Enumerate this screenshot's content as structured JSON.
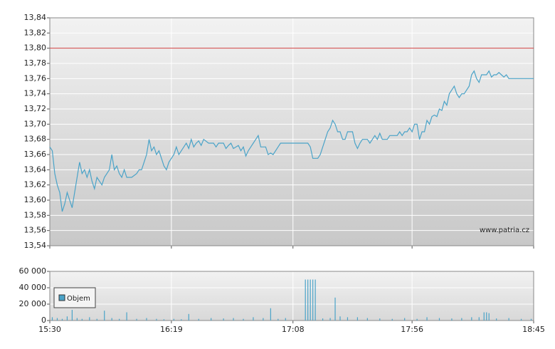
{
  "chart_data": [
    {
      "type": "line",
      "x": [
        "15:30",
        "15:31",
        "15:32",
        "15:33",
        "15:34",
        "15:35",
        "15:36",
        "15:37",
        "15:38",
        "15:39",
        "15:40",
        "15:41",
        "15:42",
        "15:43",
        "15:44",
        "15:45",
        "15:46",
        "15:47",
        "15:48",
        "15:49",
        "15:50",
        "15:51",
        "15:52",
        "15:53",
        "15:54",
        "15:55",
        "15:56",
        "15:57",
        "15:58",
        "15:59",
        "16:00",
        "16:01",
        "16:03",
        "16:05",
        "16:06",
        "16:07",
        "16:08",
        "16:09",
        "16:10",
        "16:11",
        "16:12",
        "16:13",
        "16:14",
        "16:15",
        "16:16",
        "16:17",
        "16:18",
        "16:19",
        "16:20",
        "16:21",
        "16:22",
        "16:23",
        "16:24",
        "16:25",
        "16:26",
        "16:27",
        "16:28",
        "16:29",
        "16:30",
        "16:31",
        "16:32",
        "16:34",
        "16:36",
        "16:37",
        "16:38",
        "16:40",
        "16:41",
        "16:42",
        "16:43",
        "16:44",
        "16:45",
        "16:46",
        "16:47",
        "16:48",
        "16:49",
        "16:50",
        "16:51",
        "16:52",
        "16:53",
        "16:54",
        "16:55",
        "16:57",
        "16:58",
        "16:59",
        "17:00",
        "17:01",
        "17:02",
        "17:03",
        "17:05",
        "17:10",
        "17:14",
        "17:15",
        "17:16",
        "17:18",
        "17:19",
        "17:20",
        "17:21",
        "17:22",
        "17:23",
        "17:24",
        "17:25",
        "17:26",
        "17:27",
        "17:28",
        "17:29",
        "17:30",
        "17:32",
        "17:33",
        "17:34",
        "17:35",
        "17:36",
        "17:38",
        "17:39",
        "17:40",
        "17:41",
        "17:42",
        "17:43",
        "17:44",
        "17:46",
        "17:47",
        "17:50",
        "17:51",
        "17:52",
        "17:53",
        "17:54",
        "17:55",
        "17:56",
        "17:57",
        "17:58",
        "17:59",
        "18:00",
        "18:01",
        "18:02",
        "18:03",
        "18:04",
        "18:05",
        "18:06",
        "18:07",
        "18:08",
        "18:09",
        "18:10",
        "18:11",
        "18:12",
        "18:13",
        "18:14",
        "18:15",
        "18:16",
        "18:17",
        "18:18",
        "18:19",
        "18:20",
        "18:21",
        "18:22",
        "18:23",
        "18:24",
        "18:25",
        "18:26",
        "18:27",
        "18:28",
        "18:29",
        "18:30",
        "18:31",
        "18:32",
        "18:33",
        "18:34",
        "18:35",
        "18:40",
        "18:45"
      ],
      "values": [
        13.67,
        13.665,
        13.635,
        13.62,
        13.61,
        13.585,
        13.595,
        13.61,
        13.6,
        13.59,
        13.61,
        13.63,
        13.65,
        13.635,
        13.64,
        13.63,
        13.64,
        13.625,
        13.615,
        13.63,
        13.625,
        13.62,
        13.63,
        13.635,
        13.64,
        13.66,
        13.64,
        13.645,
        13.635,
        13.63,
        13.64,
        13.63,
        13.63,
        13.635,
        13.64,
        13.64,
        13.65,
        13.66,
        13.68,
        13.665,
        13.67,
        13.66,
        13.665,
        13.655,
        13.645,
        13.64,
        13.65,
        13.655,
        13.66,
        13.67,
        13.66,
        13.665,
        13.67,
        13.675,
        13.668,
        13.68,
        13.67,
        13.675,
        13.678,
        13.672,
        13.68,
        13.675,
        13.675,
        13.67,
        13.675,
        13.675,
        13.668,
        13.672,
        13.675,
        13.668,
        13.67,
        13.672,
        13.665,
        13.67,
        13.658,
        13.665,
        13.67,
        13.675,
        13.68,
        13.685,
        13.67,
        13.67,
        13.66,
        13.662,
        13.66,
        13.665,
        13.67,
        13.675,
        13.675,
        13.675,
        13.675,
        13.67,
        13.655,
        13.655,
        13.66,
        13.67,
        13.68,
        13.69,
        13.695,
        13.705,
        13.7,
        13.69,
        13.69,
        13.68,
        13.68,
        13.69,
        13.69,
        13.675,
        13.668,
        13.675,
        13.68,
        13.68,
        13.675,
        13.68,
        13.685,
        13.68,
        13.688,
        13.68,
        13.68,
        13.685,
        13.685,
        13.69,
        13.685,
        13.69,
        13.69,
        13.695,
        13.69,
        13.7,
        13.7,
        13.68,
        13.69,
        13.69,
        13.705,
        13.7,
        13.71,
        13.712,
        13.71,
        13.72,
        13.718,
        13.73,
        13.725,
        13.74,
        13.745,
        13.75,
        13.74,
        13.735,
        13.74,
        13.74,
        13.745,
        13.75,
        13.765,
        13.77,
        13.76,
        13.755,
        13.765,
        13.765,
        13.765,
        13.77,
        13.762,
        13.765,
        13.765,
        13.768,
        13.765,
        13.762,
        13.765,
        13.76,
        13.76,
        13.76
      ],
      "color": "#4aa3c8",
      "xlim": [
        "15:30",
        "18:45"
      ],
      "xticks": [
        "15:30",
        "16:19",
        "17:08",
        "17:56",
        "18:45"
      ],
      "ylim": [
        13.54,
        13.84
      ],
      "yticks": [
        {
          "value": 13.54,
          "label": "13,54"
        },
        {
          "value": 13.56,
          "label": "13,56"
        },
        {
          "value": 13.58,
          "label": "13,58"
        },
        {
          "value": 13.6,
          "label": "13,60"
        },
        {
          "value": 13.62,
          "label": "13,62"
        },
        {
          "value": 13.64,
          "label": "13,64"
        },
        {
          "value": 13.66,
          "label": "13,66"
        },
        {
          "value": 13.68,
          "label": "13,68"
        },
        {
          "value": 13.7,
          "label": "13,70"
        },
        {
          "value": 13.72,
          "label": "13,72"
        },
        {
          "value": 13.74,
          "label": "13,74"
        },
        {
          "value": 13.76,
          "label": "13,76"
        },
        {
          "value": 13.78,
          "label": "13,78"
        },
        {
          "value": 13.8,
          "label": "13,80"
        },
        {
          "value": 13.82,
          "label": "13,82"
        },
        {
          "value": 13.84,
          "label": "13,84"
        }
      ],
      "reference_line": 13.8,
      "reference_color": "#d04040",
      "annotation": "www.patria.cz",
      "grid": true
    },
    {
      "type": "bar",
      "x": [
        "15:31",
        "15:33",
        "15:35",
        "15:37",
        "15:39",
        "15:41",
        "15:43",
        "15:46",
        "15:49",
        "15:52",
        "15:55",
        "15:58",
        "16:01",
        "16:05",
        "16:09",
        "16:13",
        "16:16",
        "16:20",
        "16:23",
        "16:26",
        "16:30",
        "16:35",
        "16:40",
        "16:44",
        "16:48",
        "16:52",
        "16:56",
        "16:59",
        "17:02",
        "17:05",
        "17:13",
        "17:14",
        "17:15",
        "17:16",
        "17:17",
        "17:20",
        "17:23",
        "17:25",
        "17:27",
        "17:30",
        "17:34",
        "17:38",
        "17:43",
        "17:48",
        "17:53",
        "17:58",
        "18:02",
        "18:07",
        "18:12",
        "18:16",
        "18:20",
        "18:23",
        "18:25",
        "18:26",
        "18:27",
        "18:30",
        "18:35",
        "18:40",
        "18:44"
      ],
      "values": [
        4000,
        3000,
        2000,
        5000,
        13000,
        3000,
        2000,
        4000,
        2000,
        12000,
        3000,
        2000,
        10000,
        2000,
        3000,
        2000,
        1500,
        2000,
        1500,
        8000,
        2000,
        3000,
        2500,
        3000,
        2000,
        4000,
        3000,
        15000,
        2000,
        3000,
        50000,
        50000,
        50000,
        50000,
        50000,
        2500,
        3000,
        28000,
        5000,
        4000,
        4000,
        3000,
        2500,
        2000,
        3000,
        2000,
        4000,
        3000,
        2500,
        3000,
        4000,
        4000,
        10000,
        10000,
        9000,
        2500,
        3000,
        2000,
        2000
      ],
      "color": "#4aa3c8",
      "xlim": [
        "15:30",
        "18:45"
      ],
      "xticks": [
        "15:30",
        "16:19",
        "17:08",
        "17:56",
        "18:45"
      ],
      "ylim": [
        0,
        60000
      ],
      "yticks": [
        0,
        {
          "value": 20000,
          "label": "20 000"
        },
        {
          "value": 40000,
          "label": "40 000"
        },
        {
          "value": 60000,
          "label": "60 000"
        }
      ],
      "legend": "Objem",
      "grid": true
    }
  ]
}
